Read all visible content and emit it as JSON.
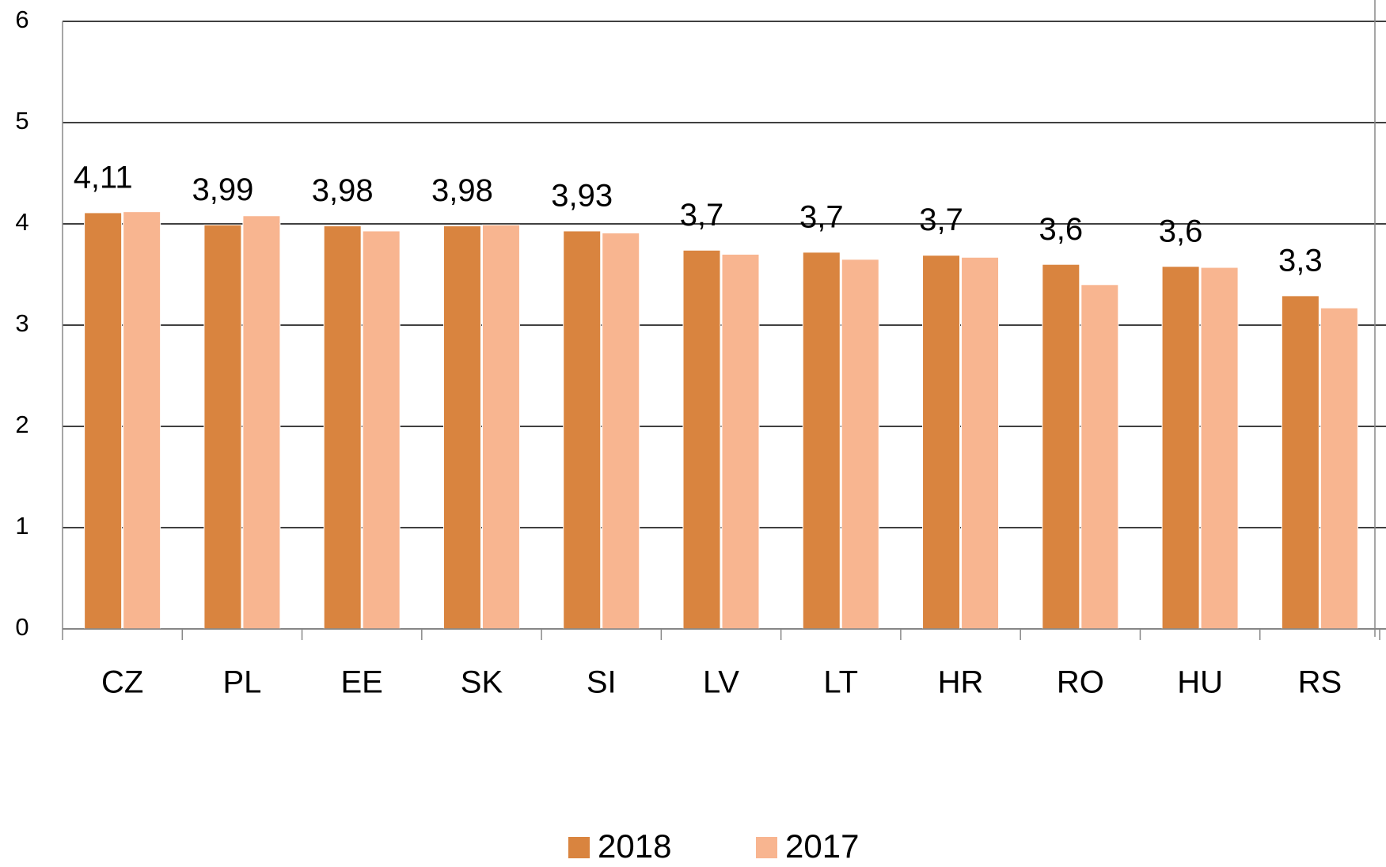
{
  "chart_data": {
    "type": "bar",
    "categories": [
      "CZ",
      "PL",
      "EE",
      "SK",
      "SI",
      "LV",
      "LT",
      "HR",
      "RO",
      "HU",
      "RS"
    ],
    "series": [
      {
        "name": "2018",
        "color": "#d9843f",
        "values": [
          4.11,
          3.99,
          3.98,
          3.98,
          3.93,
          3.74,
          3.72,
          3.69,
          3.6,
          3.58,
          3.29
        ],
        "value_labels": [
          "4,11",
          "3,99",
          "3,98",
          "3,98",
          "3,93",
          "3,7",
          "3,7",
          "3,7",
          "3,6",
          "3,6",
          "3,3"
        ]
      },
      {
        "name": "2017",
        "color": "#f8b590",
        "values": [
          4.12,
          4.08,
          3.93,
          3.99,
          3.91,
          3.7,
          3.65,
          3.67,
          3.4,
          3.57,
          3.17
        ]
      }
    ],
    "ylim": [
      0,
      6
    ],
    "yticks": [
      0,
      1,
      2,
      3,
      4,
      5,
      6
    ],
    "grid": true,
    "legend": "bottom"
  }
}
